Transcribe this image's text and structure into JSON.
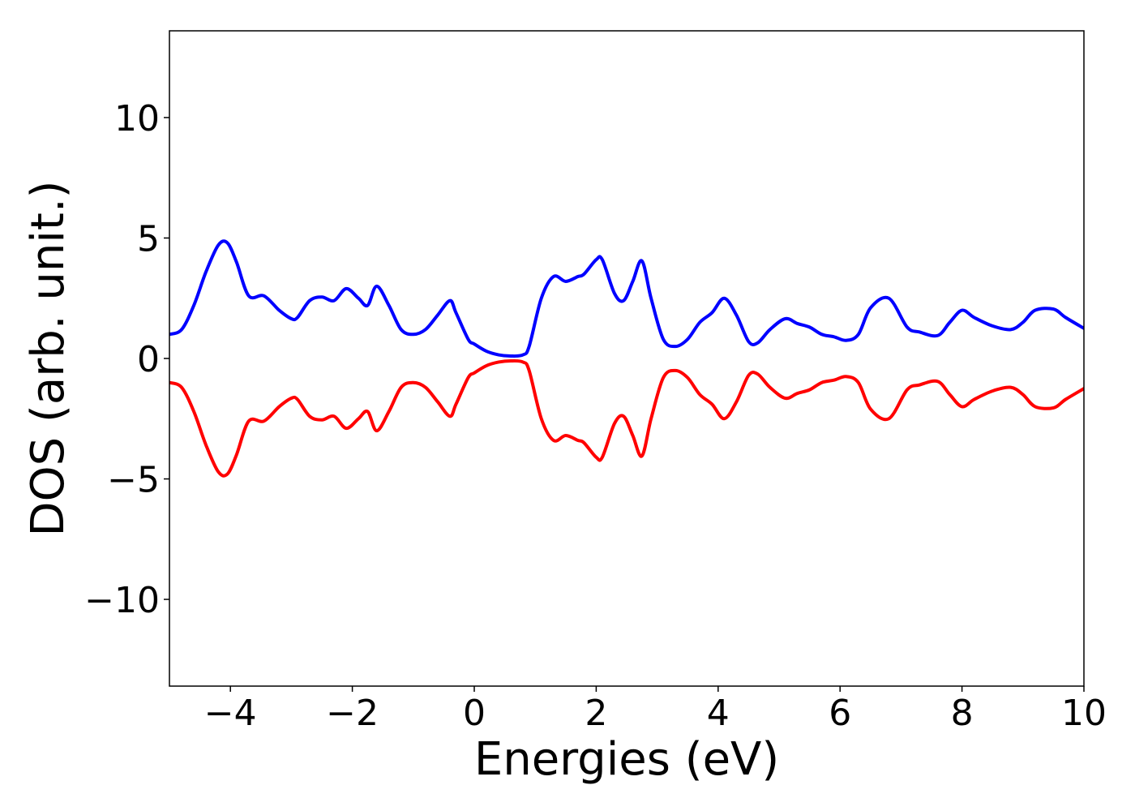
{
  "chart_data": {
    "type": "line",
    "title": "",
    "xlabel": "Energies (eV)",
    "ylabel": "DOS (arb. unit.)",
    "xlim": [
      -5,
      10
    ],
    "ylim": [
      -13.6,
      13.6
    ],
    "xticks": [
      -4,
      -2,
      0,
      2,
      4,
      6,
      8,
      10
    ],
    "xtick_labels": [
      "−4",
      "−2",
      "0",
      "2",
      "4",
      "6",
      "8",
      "10"
    ],
    "yticks": [
      10,
      5,
      0,
      -5,
      -10
    ],
    "ytick_labels": [
      "10",
      "5",
      "0",
      "−5",
      "−10"
    ],
    "grid": false,
    "legend": "none",
    "series": [
      {
        "color": "#0000ff",
        "x": [
          -5.0,
          -4.8,
          -4.6,
          -4.4,
          -4.2,
          -4.05,
          -3.9,
          -3.7,
          -3.45,
          -3.2,
          -3.0,
          -2.9,
          -2.7,
          -2.5,
          -2.3,
          -2.1,
          -1.9,
          -1.75,
          -1.6,
          -1.4,
          -1.2,
          -1.0,
          -0.8,
          -0.6,
          -0.4,
          -0.3,
          -0.1,
          0.0,
          0.2,
          0.4,
          0.6,
          0.8,
          0.9,
          1.1,
          1.3,
          1.5,
          1.7,
          1.8,
          2.0,
          2.1,
          2.3,
          2.45,
          2.6,
          2.75,
          2.9,
          3.1,
          3.3,
          3.5,
          3.7,
          3.9,
          4.1,
          4.3,
          4.5,
          4.65,
          4.85,
          5.1,
          5.3,
          5.5,
          5.7,
          5.9,
          6.1,
          6.3,
          6.5,
          6.8,
          7.1,
          7.3,
          7.6,
          7.8,
          8.0,
          8.2,
          8.5,
          8.8,
          9.0,
          9.2,
          9.5,
          9.7,
          10.0
        ],
        "values": [
          1.0,
          1.2,
          2.2,
          3.6,
          4.7,
          4.8,
          4.0,
          2.6,
          2.6,
          2.0,
          1.65,
          1.7,
          2.4,
          2.55,
          2.4,
          2.9,
          2.5,
          2.2,
          3.0,
          2.2,
          1.2,
          1.0,
          1.2,
          1.8,
          2.4,
          1.9,
          0.8,
          0.6,
          0.3,
          0.15,
          0.1,
          0.15,
          0.5,
          2.5,
          3.4,
          3.2,
          3.4,
          3.5,
          4.1,
          4.1,
          2.7,
          2.4,
          3.2,
          4.05,
          2.5,
          0.8,
          0.5,
          0.8,
          1.5,
          1.9,
          2.5,
          1.8,
          0.7,
          0.65,
          1.2,
          1.65,
          1.45,
          1.3,
          1.0,
          0.9,
          0.75,
          1.0,
          2.1,
          2.5,
          1.3,
          1.1,
          0.95,
          1.5,
          2.0,
          1.7,
          1.35,
          1.2,
          1.5,
          2.0,
          2.05,
          1.7,
          1.25
        ]
      },
      {
        "color": "#ff0000",
        "x": [
          -5.0,
          -4.8,
          -4.6,
          -4.4,
          -4.2,
          -4.05,
          -3.9,
          -3.7,
          -3.45,
          -3.2,
          -3.0,
          -2.9,
          -2.7,
          -2.5,
          -2.3,
          -2.1,
          -1.9,
          -1.75,
          -1.6,
          -1.4,
          -1.2,
          -1.0,
          -0.8,
          -0.6,
          -0.4,
          -0.3,
          -0.1,
          0.0,
          0.2,
          0.4,
          0.6,
          0.8,
          0.9,
          1.1,
          1.3,
          1.5,
          1.7,
          1.8,
          2.0,
          2.1,
          2.3,
          2.45,
          2.6,
          2.75,
          2.9,
          3.1,
          3.3,
          3.5,
          3.7,
          3.9,
          4.1,
          4.3,
          4.5,
          4.65,
          4.85,
          5.1,
          5.3,
          5.5,
          5.7,
          5.9,
          6.1,
          6.3,
          6.5,
          6.8,
          7.1,
          7.3,
          7.6,
          7.8,
          8.0,
          8.2,
          8.5,
          8.8,
          9.0,
          9.2,
          9.5,
          9.7,
          10.0
        ],
        "values": [
          -1.0,
          -1.2,
          -2.2,
          -3.6,
          -4.7,
          -4.8,
          -4.0,
          -2.6,
          -2.6,
          -2.0,
          -1.65,
          -1.7,
          -2.4,
          -2.55,
          -2.4,
          -2.9,
          -2.5,
          -2.2,
          -3.0,
          -2.2,
          -1.2,
          -1.0,
          -1.2,
          -1.8,
          -2.4,
          -1.9,
          -0.8,
          -0.6,
          -0.3,
          -0.15,
          -0.1,
          -0.15,
          -0.5,
          -2.5,
          -3.4,
          -3.2,
          -3.4,
          -3.5,
          -4.1,
          -4.1,
          -2.7,
          -2.4,
          -3.2,
          -4.05,
          -2.5,
          -0.8,
          -0.5,
          -0.8,
          -1.5,
          -1.9,
          -2.5,
          -1.8,
          -0.7,
          -0.65,
          -1.2,
          -1.65,
          -1.45,
          -1.3,
          -1.0,
          -0.9,
          -0.75,
          -1.0,
          -2.1,
          -2.5,
          -1.3,
          -1.1,
          -0.95,
          -1.5,
          -2.0,
          -1.7,
          -1.35,
          -1.2,
          -1.5,
          -2.0,
          -2.05,
          -1.7,
          -1.25
        ]
      }
    ]
  }
}
